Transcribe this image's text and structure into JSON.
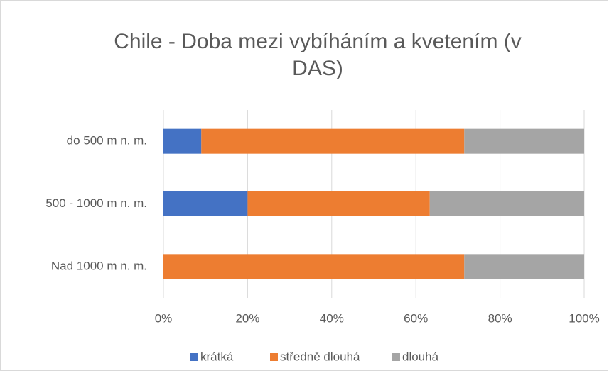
{
  "chart_data": {
    "type": "stacked_barh",
    "title": "Chile - Doba mezi vybíháním a kvetením (v DAS)",
    "categories": [
      "do 500 m n. m.",
      "500 - 1000 m n. m.",
      "Nad 1000 m n. m."
    ],
    "series": [
      {
        "name": "krátká",
        "color": "#4472c4",
        "values": [
          9,
          20,
          0
        ]
      },
      {
        "name": "středně dlouhá",
        "color": "#ed7d31",
        "values": [
          62.5,
          43.3,
          71.5
        ]
      },
      {
        "name": "dlouhá",
        "color": "#a5a5a5",
        "values": [
          28.5,
          36.7,
          28.5
        ]
      }
    ],
    "xlim": [
      0,
      100
    ],
    "xticks": [
      {
        "value": 0,
        "label": "0%"
      },
      {
        "value": 20,
        "label": "20%"
      },
      {
        "value": 40,
        "label": "40%"
      },
      {
        "value": 60,
        "label": "60%"
      },
      {
        "value": 80,
        "label": "80%"
      },
      {
        "value": 100,
        "label": "100%"
      }
    ],
    "grid": true,
    "legend": "bottom"
  }
}
